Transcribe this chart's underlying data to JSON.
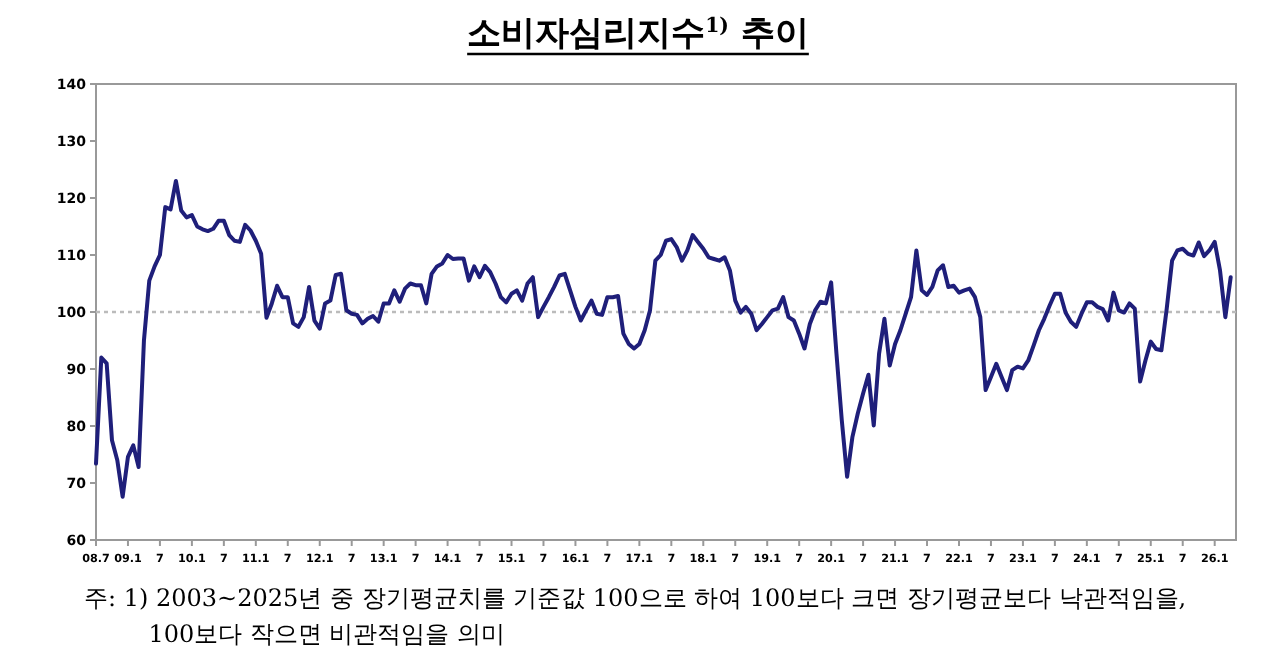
{
  "chart_data": {
    "type": "line",
    "title": "소비자심리지수$^{1)}$ 추이",
    "annotations": [
      "주: 1) 2003~2025년 중 장기평균치를 기준값 100으로 하여 100보다 크면 장기평균보다 낙관적임을, 100보다 작으면 비관적임을 의미"
    ],
    "xlim": [
      "2008-07",
      "2026-05"
    ],
    "xticks": [
      {
        "value": "2008-07",
        "label": "08.7"
      },
      {
        "value": "2009-01",
        "label": "09.1"
      },
      {
        "value": "2009-07",
        "label": "7"
      },
      {
        "value": "2010-01",
        "label": "10.1"
      },
      {
        "value": "2010-07",
        "label": "7"
      },
      {
        "value": "2011-01",
        "label": "11.1"
      },
      {
        "value": "2011-07",
        "label": "7"
      },
      {
        "value": "2012-01",
        "label": "12.1"
      },
      {
        "value": "2012-07",
        "label": "7"
      },
      {
        "value": "2013-01",
        "label": "13.1"
      },
      {
        "value": "2013-07",
        "label": "7"
      },
      {
        "value": "2014-01",
        "label": "14.1"
      },
      {
        "value": "2014-07",
        "label": "7"
      },
      {
        "value": "2015-01",
        "label": "15.1"
      },
      {
        "value": "2015-07",
        "label": "7"
      },
      {
        "value": "2016-01",
        "label": "16.1"
      },
      {
        "value": "2016-07",
        "label": "7"
      },
      {
        "value": "2017-01",
        "label": "17.1"
      },
      {
        "value": "2017-07",
        "label": "7"
      },
      {
        "value": "2018-01",
        "label": "18.1"
      },
      {
        "value": "2018-07",
        "label": "7"
      },
      {
        "value": "2019-01",
        "label": "19.1"
      },
      {
        "value": "2019-07",
        "label": "7"
      },
      {
        "value": "2020-01",
        "label": "20.1"
      },
      {
        "value": "2020-07",
        "label": "7"
      },
      {
        "value": "2021-01",
        "label": "21.1"
      },
      {
        "value": "2021-07",
        "label": "7"
      },
      {
        "value": "2022-01",
        "label": "22.1"
      },
      {
        "value": "2022-07",
        "label": "7"
      },
      {
        "value": "2023-01",
        "label": "23.1"
      },
      {
        "value": "2023-07",
        "label": "7"
      },
      {
        "value": "2024-01",
        "label": "24.1"
      },
      {
        "value": "2024-07",
        "label": "7"
      },
      {
        "value": "2025-01",
        "label": "25.1"
      },
      {
        "value": "2025-07",
        "label": "7"
      },
      {
        "value": "2026-01",
        "label": "26.1"
      }
    ],
    "ylim": [
      60,
      140
    ],
    "yticks": [
      60,
      70,
      80,
      90,
      100,
      110,
      120,
      130,
      140
    ],
    "grid": false,
    "marker": "none",
    "line_style": "solid",
    "ref_lines": [
      {
        "axis": "y",
        "value": 100,
        "color": "#bbbbbb",
        "line_style": "dotted"
      }
    ],
    "x": [
      "2008-07",
      "2008-08",
      "2008-09",
      "2008-10",
      "2008-11",
      "2008-12",
      "2009-01",
      "2009-02",
      "2009-03",
      "2009-04",
      "2009-05",
      "2009-06",
      "2009-07",
      "2009-08",
      "2009-09",
      "2009-10",
      "2009-11",
      "2009-12",
      "2010-01",
      "2010-02",
      "2010-03",
      "2010-04",
      "2010-05",
      "2010-06",
      "2010-07",
      "2010-08",
      "2010-09",
      "2010-10",
      "2010-11",
      "2010-12",
      "2011-01",
      "2011-02",
      "2011-03",
      "2011-04",
      "2011-05",
      "2011-06",
      "2011-07",
      "2011-08",
      "2011-09",
      "2011-10",
      "2011-11",
      "2011-12",
      "2012-01",
      "2012-02",
      "2012-03",
      "2012-04",
      "2012-05",
      "2012-06",
      "2012-07",
      "2012-08",
      "2012-09",
      "2012-10",
      "2012-11",
      "2012-12",
      "2013-01",
      "2013-02",
      "2013-03",
      "2013-04",
      "2013-05",
      "2013-06",
      "2013-07",
      "2013-08",
      "2013-09",
      "2013-10",
      "2013-11",
      "2013-12",
      "2014-01",
      "2014-02",
      "2014-03",
      "2014-04",
      "2014-05",
      "2014-06",
      "2014-07",
      "2014-08",
      "2014-09",
      "2014-10",
      "2014-11",
      "2014-12",
      "2015-01",
      "2015-02",
      "2015-03",
      "2015-04",
      "2015-05",
      "2015-06",
      "2015-07",
      "2015-08",
      "2015-09",
      "2015-10",
      "2015-11",
      "2015-12",
      "2016-01",
      "2016-02",
      "2016-03",
      "2016-04",
      "2016-05",
      "2016-06",
      "2016-07",
      "2016-08",
      "2016-09",
      "2016-10",
      "2016-11",
      "2016-12",
      "2017-01",
      "2017-02",
      "2017-03",
      "2017-04",
      "2017-05",
      "2017-06",
      "2017-07",
      "2017-08",
      "2017-09",
      "2017-10",
      "2017-11",
      "2017-12",
      "2018-01",
      "2018-02",
      "2018-03",
      "2018-04",
      "2018-05",
      "2018-06",
      "2018-07",
      "2018-08",
      "2018-09",
      "2018-10",
      "2018-11",
      "2018-12",
      "2019-01",
      "2019-02",
      "2019-03",
      "2019-04",
      "2019-05",
      "2019-06",
      "2019-07",
      "2019-08",
      "2019-09",
      "2019-10",
      "2019-11",
      "2019-12",
      "2020-01",
      "2020-02",
      "2020-03",
      "2020-04",
      "2020-05",
      "2020-06",
      "2020-07",
      "2020-08",
      "2020-09",
      "2020-10",
      "2020-11",
      "2020-12",
      "2021-01",
      "2021-02",
      "2021-03",
      "2021-04",
      "2021-05",
      "2021-06",
      "2021-07",
      "2021-08",
      "2021-09",
      "2021-10",
      "2021-11",
      "2021-12",
      "2022-01",
      "2022-02",
      "2022-03",
      "2022-04",
      "2022-05",
      "2022-06",
      "2022-07",
      "2022-08",
      "2022-09",
      "2022-10",
      "2022-11",
      "2022-12",
      "2023-01",
      "2023-02",
      "2023-03",
      "2023-04",
      "2023-05",
      "2023-06",
      "2023-07",
      "2023-08",
      "2023-09",
      "2023-10",
      "2023-11",
      "2023-12",
      "2024-01",
      "2024-02",
      "2024-03",
      "2024-04",
      "2024-05",
      "2024-06",
      "2024-07",
      "2024-08",
      "2024-09",
      "2024-10",
      "2024-11",
      "2024-12",
      "2025-01",
      "2025-02",
      "2025-03",
      "2025-04",
      "2025-05",
      "2025-06",
      "2025-07",
      "2025-08",
      "2025-09",
      "2025-10",
      "2025-11",
      "2025-12",
      "2026-01",
      "2026-02",
      "2026-03",
      "2026-04"
    ],
    "series": [
      {
        "color": "#1f1f7a",
        "values": [
          73.4,
          92,
          91,
          77.5,
          74,
          67.6,
          74.6,
          76.6,
          72.8,
          95,
          105.5,
          108,
          110,
          118.4,
          118,
          123,
          117.8,
          116.6,
          117,
          115,
          114.5,
          114.2,
          114.6,
          116,
          116,
          113.5,
          112.5,
          112.3,
          115.3,
          114.3,
          112.5,
          110.2,
          99,
          101.5,
          104.6,
          102.6,
          102.6,
          98,
          97.4,
          99.1,
          104.4,
          98.5,
          97.1,
          101.5,
          102,
          106.5,
          106.7,
          100.3,
          99.7,
          99.5,
          98,
          98.8,
          99.3,
          98.3,
          101.5,
          101.5,
          103.8,
          101.8,
          104.1,
          105,
          104.7,
          104.7,
          101.5,
          106.7,
          108,
          108.5,
          110,
          109.3,
          109.4,
          109.4,
          105.5,
          108,
          106.1,
          108.1,
          107,
          105,
          102.6,
          101.7,
          103.2,
          103.8,
          102,
          105,
          106.1,
          99.1,
          100.9,
          102.6,
          104.4,
          106.4,
          106.7,
          103.8,
          100.9,
          98.5,
          100.3,
          102,
          99.7,
          99.5,
          102.6,
          102.6,
          102.8,
          96.2,
          94.4,
          93.6,
          94.4,
          96.8,
          100.3,
          109,
          110,
          112.5,
          112.8,
          111.4,
          109,
          110.8,
          113.5,
          112.3,
          111.1,
          109.6,
          109.3,
          109,
          109.6,
          107.3,
          102,
          99.9,
          100.9,
          99.7,
          96.8,
          97.9,
          99.1,
          100.3,
          100.6,
          102.6,
          99.1,
          98.5,
          96.2,
          93.6,
          97.9,
          100.3,
          101.8,
          101.5,
          105.2,
          92.7,
          81,
          71.1,
          78.1,
          82.2,
          85.7,
          89,
          80.1,
          92.7,
          98.8,
          90.6,
          94.4,
          96.8,
          99.7,
          102.6,
          110.8,
          103.8,
          103,
          104.4,
          107.3,
          108.2,
          104.4,
          104.6,
          103.4,
          103.8,
          104.1,
          102.6,
          99.1,
          86.3,
          88.6,
          90.9,
          88.6,
          86.3,
          89.8,
          90.4,
          90.1,
          91.5,
          94.1,
          96.8,
          98.8,
          101.1,
          103.2,
          103.2,
          99.9,
          98.3,
          97.4,
          99.7,
          101.7,
          101.7,
          100.9,
          100.5,
          98.5,
          103.4,
          100.3,
          99.9,
          101.5,
          100.6,
          87.8,
          91.5,
          94.8,
          93.5,
          93.3,
          100.6,
          109,
          110.8,
          111.1,
          110.2,
          109.9,
          112.2,
          109.8,
          110.8,
          112.3,
          107.3,
          99.1,
          106.1
        ]
      }
    ]
  }
}
